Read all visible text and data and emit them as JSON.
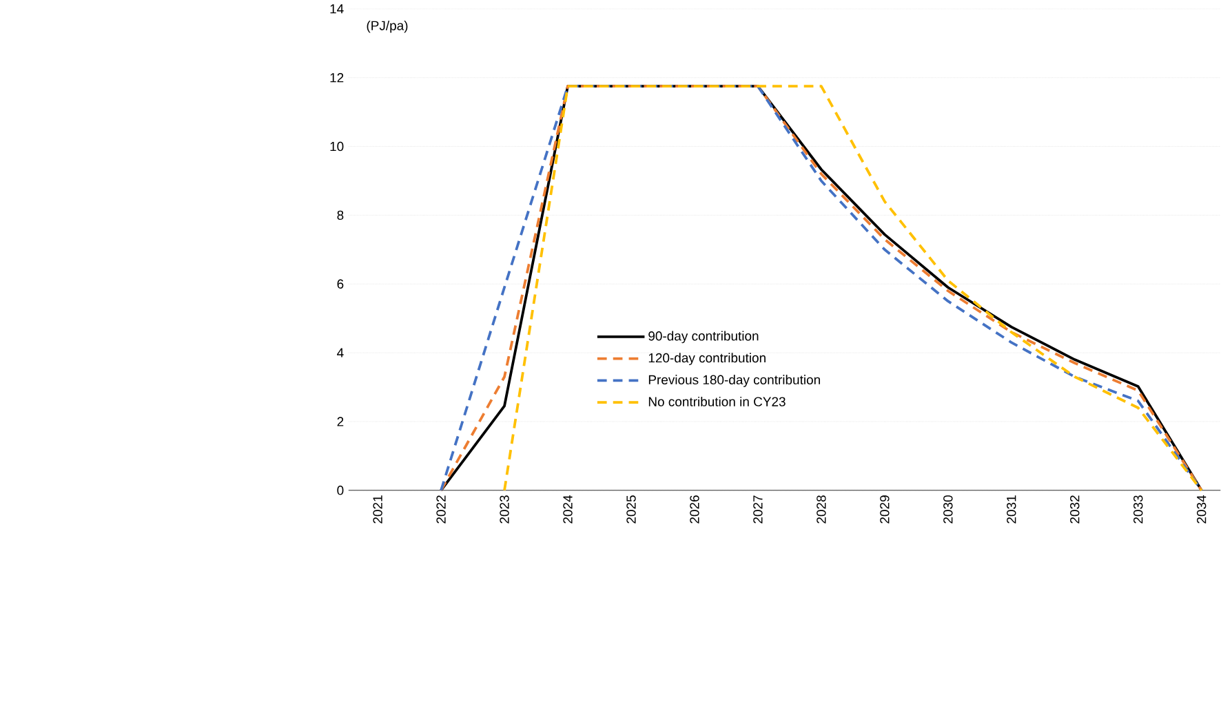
{
  "chart_data": {
    "type": "line",
    "ylabel": "(PJ/pa)",
    "categories": [
      "2021",
      "2022",
      "2023",
      "2024",
      "2025",
      "2026",
      "2027",
      "2028",
      "2029",
      "2030",
      "2031",
      "2032",
      "2033",
      "2034"
    ],
    "series": [
      {
        "name": "90-day contribution",
        "color": "#000000",
        "line_style": "solid",
        "values": [
          null,
          0,
          2.45,
          11.75,
          11.75,
          11.75,
          11.75,
          9.33,
          7.44,
          5.9,
          4.75,
          3.8,
          3.02,
          0
        ]
      },
      {
        "name": "120-day contribution",
        "color": "#ed7d31",
        "line_style": "dashed",
        "values": [
          null,
          0,
          3.3,
          11.75,
          11.75,
          11.75,
          11.75,
          9.2,
          7.3,
          5.8,
          4.6,
          3.7,
          2.9,
          0
        ]
      },
      {
        "name": "Previous 180-day contribution",
        "color": "#4472c4",
        "line_style": "dashed",
        "values": [
          null,
          0,
          5.9,
          11.75,
          11.75,
          11.75,
          11.75,
          9.0,
          7.0,
          5.5,
          4.3,
          3.3,
          2.6,
          0
        ]
      },
      {
        "name": "No contribution in CY23",
        "color": "#ffc000",
        "line_style": "dashed",
        "values": [
          null,
          null,
          0,
          11.75,
          11.75,
          11.75,
          11.75,
          11.75,
          8.4,
          6.1,
          4.6,
          3.3,
          2.4,
          0
        ]
      }
    ],
    "ylim": [
      0,
      14
    ],
    "yticks": [
      0,
      2,
      4,
      6,
      8,
      10,
      12,
      14
    ],
    "grid": "y",
    "legend": "bottom",
    "marker": "none"
  }
}
